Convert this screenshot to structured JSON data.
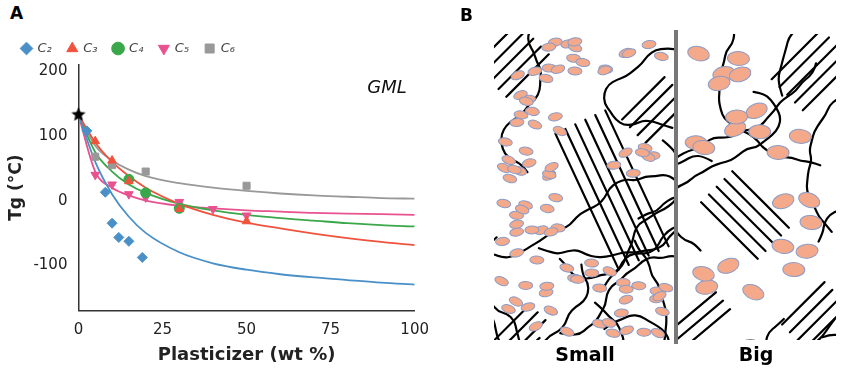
{
  "chart_data": {
    "type": "scatter",
    "panel_label": "A",
    "annotations": [
      "GML"
    ],
    "x_label": "Plasticizer (wt %)",
    "y_label": "Tg (°C)",
    "xlim": [
      0,
      100
    ],
    "xticks": [
      0,
      25,
      50,
      75,
      100
    ],
    "ylim": [
      -170,
      210
    ],
    "yticks": [
      -100,
      0,
      100,
      200
    ],
    "grid": false,
    "legend": "top",
    "reference_point": {
      "x": 0,
      "value": 133,
      "color": "#000000",
      "marker": "star"
    },
    "series": [
      {
        "name": "C₂",
        "color": "#4a90c8",
        "marker": "diamond",
        "x": [
          2.5,
          8,
          10,
          12,
          15,
          19
        ],
        "values": [
          108,
          13,
          -35,
          -57,
          -63,
          -88
        ],
        "fit": {
          "x": [
            0,
            5,
            10,
            15,
            20,
            30,
            40,
            50,
            60,
            70,
            80,
            90,
            100
          ],
          "values": [
            133,
            60,
            10,
            -25,
            -50,
            -80,
            -97,
            -107,
            -114,
            -119,
            -123,
            -127,
            -130
          ]
        }
      },
      {
        "name": "C₃",
        "color": "#f0533d",
        "marker": "triangle",
        "x": [
          5,
          10,
          15,
          30,
          50
        ],
        "values": [
          92,
          62,
          30,
          -13,
          -32
        ],
        "fit": {
          "x": [
            0,
            5,
            10,
            15,
            20,
            30,
            40,
            50,
            60,
            70,
            80,
            90,
            100
          ],
          "values": [
            133,
            90,
            60,
            38,
            20,
            -5,
            -22,
            -34,
            -43,
            -51,
            -58,
            -64,
            -69
          ]
        }
      },
      {
        "name": "C₄",
        "color": "#3aa84a",
        "marker": "circle",
        "x": [
          15,
          20,
          30
        ],
        "values": [
          33,
          12,
          -12
        ],
        "fit": {
          "x": [
            0,
            5,
            10,
            15,
            20,
            30,
            40,
            50,
            60,
            70,
            80,
            90,
            100
          ],
          "values": [
            133,
            75,
            45,
            25,
            12,
            -5,
            -15,
            -22,
            -27,
            -31,
            -35,
            -38,
            -40
          ]
        }
      },
      {
        "name": "C₅",
        "color": "#e8528f",
        "marker": "triangle_down",
        "x": [
          5,
          10,
          15,
          20,
          30,
          40,
          50
        ],
        "values": [
          40,
          25,
          10,
          5,
          -2,
          -13,
          -23
        ],
        "fit": {
          "x": [
            0,
            5,
            10,
            15,
            20,
            30,
            40,
            50,
            60,
            70,
            80,
            90,
            100
          ],
          "values": [
            133,
            45,
            20,
            8,
            0,
            -8,
            -12,
            -15,
            -17,
            -19,
            -20,
            -21,
            -22
          ]
        }
      },
      {
        "name": "C₆",
        "color": "#999999",
        "marker": "square",
        "x": [
          5,
          10,
          20,
          30,
          50
        ],
        "values": [
          68,
          55,
          45,
          -8,
          23
        ],
        "fit": {
          "x": [
            0,
            5,
            10,
            15,
            20,
            30,
            40,
            50,
            60,
            70,
            80,
            90,
            100
          ],
          "values": [
            133,
            85,
            62,
            48,
            38,
            27,
            20,
            15,
            11,
            8,
            6,
            4,
            3
          ]
        }
      }
    ]
  },
  "diagram": {
    "panel_label": "B",
    "sides": [
      {
        "label": "Small"
      },
      {
        "label": "Big"
      }
    ]
  }
}
